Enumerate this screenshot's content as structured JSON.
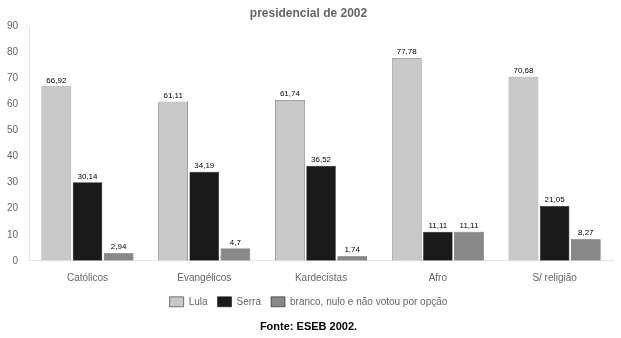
{
  "chart_data": {
    "type": "bar",
    "title": "presidencial de 2002",
    "categories": [
      "Católicos",
      "Evangélicos",
      "Kardecistas",
      "Afro",
      "S/ religião"
    ],
    "series": [
      {
        "name": "Lula",
        "color": "#c8c8c8",
        "values": [
          66.92,
          61.11,
          61.74,
          77.78,
          70.68
        ],
        "value_labels": [
          "66,92",
          "61,11",
          "61,74",
          "77,78",
          "70,68"
        ]
      },
      {
        "name": "Serra",
        "color": "#1a1a1a",
        "values": [
          30.14,
          34.19,
          36.52,
          11.11,
          21.05
        ],
        "value_labels": [
          "30,14",
          "34,19",
          "36,52",
          "11,11",
          "21,05"
        ]
      },
      {
        "name": "branco, nulo e não votou por opção",
        "color": "#888888",
        "values": [
          2.94,
          4.7,
          1.74,
          11.11,
          8.27
        ],
        "value_labels": [
          "2,94",
          "4,7",
          "1,74",
          "11,11",
          "8,27"
        ]
      }
    ],
    "ylim": [
      0,
      90
    ],
    "yticks": [
      0,
      10,
      20,
      30,
      40,
      50,
      60,
      70,
      80,
      90
    ],
    "grid": false,
    "legend": "bottom",
    "data_labels": true,
    "annotations": [
      "Fonte: ESEB 2002."
    ]
  }
}
